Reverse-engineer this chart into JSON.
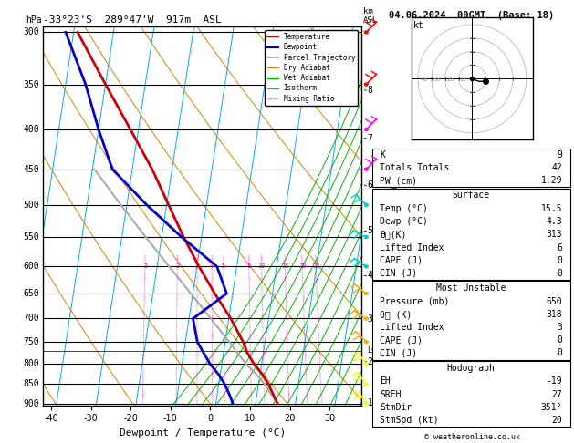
{
  "title_left": "-33°23'S  289°47'W  917m  ASL",
  "title_right": "04.06.2024  00GMT  (Base: 18)",
  "xlabel": "Dewpoint / Temperature (°C)",
  "pressure_ticks": [
    300,
    350,
    400,
    450,
    500,
    550,
    600,
    650,
    700,
    750,
    800,
    850,
    900
  ],
  "temp_ticks": [
    -40,
    -30,
    -20,
    -10,
    0,
    10,
    20,
    30
  ],
  "temp_profile": {
    "pressure": [
      900,
      875,
      850,
      825,
      800,
      775,
      750,
      700,
      650,
      600,
      550,
      500,
      450,
      400,
      350,
      300
    ],
    "temp": [
      15.5,
      14.0,
      12.5,
      10.5,
      8.0,
      6.0,
      4.5,
      0.5,
      -4.5,
      -9.5,
      -14.5,
      -19.5,
      -25.0,
      -32.0,
      -40.0,
      -49.0
    ],
    "color": "#cc0000",
    "linewidth": 2.0
  },
  "dewp_profile": {
    "pressure": [
      900,
      875,
      850,
      825,
      800,
      775,
      750,
      700,
      650,
      600,
      550,
      500,
      450,
      400,
      350,
      300
    ],
    "temp": [
      4.3,
      3.0,
      1.5,
      -0.5,
      -3.0,
      -5.0,
      -7.0,
      -9.0,
      -1.5,
      -5.0,
      -15.0,
      -25.0,
      -35.0,
      -40.0,
      -45.0,
      -52.0
    ],
    "color": "#0000cc",
    "linewidth": 2.0
  },
  "parcel_profile": {
    "pressure": [
      900,
      875,
      850,
      825,
      800,
      775,
      750,
      700,
      650,
      600,
      550,
      500,
      450
    ],
    "temp": [
      15.5,
      13.5,
      11.5,
      9.0,
      6.0,
      3.5,
      1.0,
      -4.5,
      -10.5,
      -17.0,
      -24.0,
      -31.5,
      -39.5
    ],
    "color": "#aaaaaa",
    "linewidth": 1.5
  },
  "isotherm_color": "#00aaff",
  "isotherm_lw": 0.7,
  "dry_adiabat_color": "#cc8800",
  "dry_adiabat_lw": 0.7,
  "wet_adiabat_color": "#00bb00",
  "wet_adiabat_lw": 0.7,
  "mixing_ratio_color": "#ff00bb",
  "mixing_ratio_lw": 0.6,
  "mixing_ratios": [
    1,
    2,
    3,
    4,
    5,
    8,
    10,
    15,
    20,
    25
  ],
  "km_ticks": [
    1,
    2,
    3,
    4,
    5,
    6,
    7,
    8
  ],
  "lcl_pressure": 770,
  "wind_barbs": {
    "pressure": [
      300,
      350,
      400,
      450,
      500,
      550,
      600,
      650,
      700,
      750,
      800,
      850,
      900
    ],
    "colors": [
      "#ff0000",
      "#ff0000",
      "#ff00ff",
      "#ff00ff",
      "#00cccc",
      "#00cccc",
      "#00cccc",
      "#ffaa00",
      "#ffaa00",
      "#ffaa00",
      "#ffff00",
      "#ffff00",
      "#ffff00"
    ],
    "u": [
      5,
      4,
      3,
      2,
      -1,
      -2,
      -3,
      -5,
      -6,
      -5,
      -4,
      -3,
      -2
    ],
    "v": [
      5,
      4,
      3,
      2,
      1,
      1,
      2,
      4,
      4,
      5,
      5,
      4,
      3
    ]
  },
  "table_data": {
    "K": "9",
    "Totals Totals": "42",
    "PW (cm)": "1.29",
    "Surface_Temp": "15.5",
    "Surface_Dewp": "4.3",
    "Surface_thetae": "313",
    "Surface_LI": "6",
    "Surface_CAPE": "0",
    "Surface_CIN": "0",
    "MU_Pressure": "650",
    "MU_thetae": "318",
    "MU_LI": "3",
    "MU_CAPE": "0",
    "MU_CIN": "0",
    "EH": "-19",
    "SREH": "27",
    "StmDir": "351°",
    "StmSpd": "20"
  },
  "hodo_u": [
    0,
    2,
    5,
    8,
    10
  ],
  "hodo_v": [
    0,
    -1,
    -2,
    -2,
    -2
  ],
  "pmin": 295,
  "pmax": 905,
  "temp_min": -42,
  "temp_max": 38,
  "skew": 30
}
